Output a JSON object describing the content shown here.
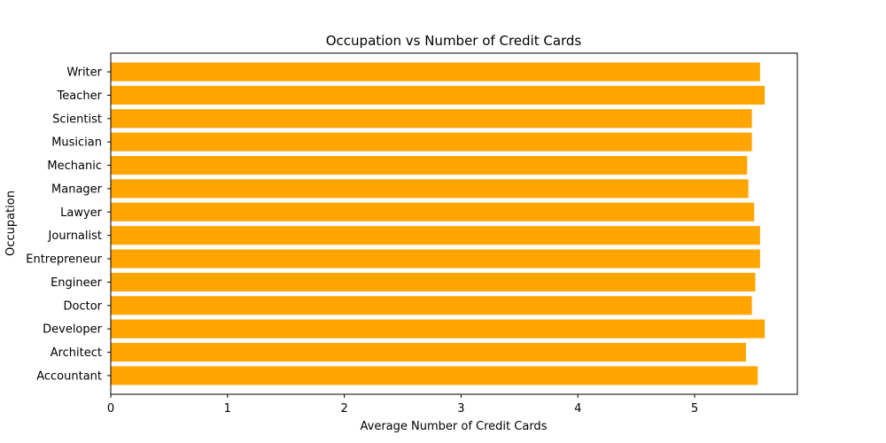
{
  "chart_data": {
    "type": "bar",
    "orientation": "horizontal",
    "title": "Occupation vs Number of Credit Cards",
    "xlabel": "Average Number of Credit Cards",
    "ylabel": "Occupation",
    "categories": [
      "Accountant",
      "Architect",
      "Developer",
      "Doctor",
      "Engineer",
      "Entrepreneur",
      "Journalist",
      "Lawyer",
      "Manager",
      "Mechanic",
      "Musician",
      "Scientist",
      "Teacher",
      "Writer"
    ],
    "values": [
      5.54,
      5.44,
      5.6,
      5.49,
      5.52,
      5.56,
      5.56,
      5.51,
      5.46,
      5.45,
      5.49,
      5.49,
      5.6,
      5.56
    ],
    "xlim": [
      0,
      5.88
    ],
    "xticks": [
      0,
      1,
      2,
      3,
      4,
      5
    ],
    "bar_color": "#ffa500",
    "grid": false
  }
}
